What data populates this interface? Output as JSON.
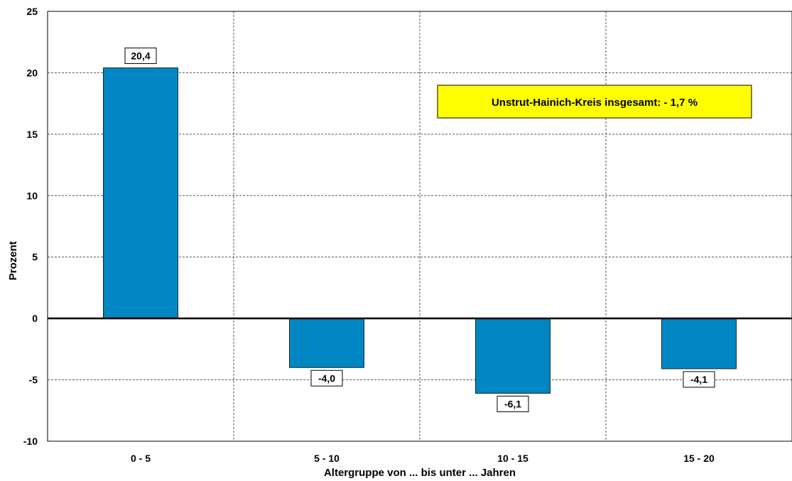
{
  "chart_data": {
    "type": "bar",
    "categories": [
      "0 - 5",
      "5 - 10",
      "10 - 15",
      "15 - 20"
    ],
    "values": [
      20.4,
      -4.0,
      -6.1,
      -4.1
    ],
    "data_labels": [
      "20,4",
      "-4,0",
      "-6,1",
      "-4,1"
    ],
    "ylim": [
      -10,
      25
    ],
    "yticks": [
      25,
      20,
      15,
      10,
      5,
      0,
      -5,
      -10
    ],
    "ytick_labels": [
      "25",
      "20",
      "15",
      "10",
      "5",
      "0",
      "-5",
      "-10"
    ],
    "xlabel": "Altergruppe von ... bis unter ... Jahren",
    "ylabel": "Prozent",
    "annotation": "Unstrut-Hainich-Kreis insgesamt: - 1,7 %",
    "grid": true,
    "colors": {
      "bar": "#0087c3",
      "annotation_bg": "#ffff00",
      "gridline": "#555555"
    }
  }
}
